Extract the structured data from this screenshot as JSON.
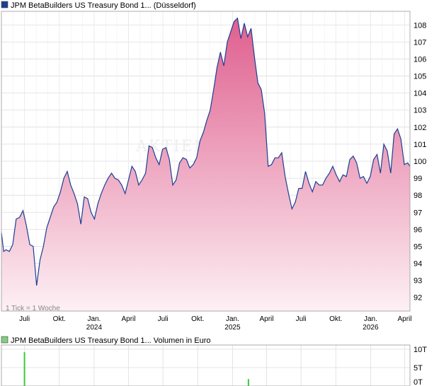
{
  "colors": {
    "price_line": "#1c3f94",
    "fill_top": "#df5f8e",
    "fill_bottom": "#fdf0f4",
    "legend_price": "#1c3f94",
    "legend_volume": "#7fcf7f",
    "volume_bar": "#3cc83c",
    "grid": "#dddddd"
  },
  "chart_data": [
    {
      "type": "area",
      "title": "JPM BetaBuilders US Treasury Bond 1... (Düsseldorf)",
      "legend_position": "top-left",
      "grid": true,
      "note": "1 Tick = 1 Woche",
      "watermark": "AKTIEN",
      "y_ticks": [
        "92",
        "93",
        "94",
        "95",
        "96",
        "97",
        "98",
        "99",
        "100",
        "101",
        "102",
        "103",
        "104",
        "105",
        "106",
        "107",
        "108"
      ],
      "ylim": [
        91.2,
        108.8
      ],
      "x_ticks": [
        {
          "date": "2023-07-01",
          "label": "Juli",
          "year": ""
        },
        {
          "date": "2023-10-01",
          "label": "Okt.",
          "year": ""
        },
        {
          "date": "2024-01-01",
          "label": "Jan.",
          "year": "2024"
        },
        {
          "date": "2024-04-01",
          "label": "April",
          "year": ""
        },
        {
          "date": "2024-07-01",
          "label": "Juli",
          "year": ""
        },
        {
          "date": "2024-10-01",
          "label": "Okt.",
          "year": ""
        },
        {
          "date": "2025-01-01",
          "label": "Jan.",
          "year": "2025"
        },
        {
          "date": "2025-04-01",
          "label": "April",
          "year": ""
        },
        {
          "date": "2025-07-01",
          "label": "Juli",
          "year": ""
        },
        {
          "date": "2025-10-01",
          "label": "Okt.",
          "year": ""
        },
        {
          "date": "2026-01-01",
          "label": "Jan.",
          "year": "2026"
        },
        {
          "date": "2026-04-01",
          "label": "April",
          "year": ""
        }
      ],
      "xlim": [
        "2023-05-01",
        "2026-04-15"
      ],
      "series": [
        {
          "x": [
            "2023-05-01",
            "2023-05-07",
            "2023-05-13",
            "2023-05-22",
            "2023-05-31",
            "2023-06-09",
            "2023-06-18",
            "2023-06-27",
            "2023-07-06",
            "2023-07-15",
            "2023-07-24",
            "2023-08-02",
            "2023-08-11",
            "2023-08-20",
            "2023-08-29",
            "2023-09-07",
            "2023-09-16",
            "2023-09-25",
            "2023-10-04",
            "2023-10-13",
            "2023-10-22",
            "2023-10-31",
            "2023-11-09",
            "2023-11-18",
            "2023-11-27",
            "2023-12-06",
            "2023-12-15",
            "2023-12-24",
            "2024-01-02",
            "2024-01-11",
            "2024-01-20",
            "2024-01-29",
            "2024-02-07",
            "2024-02-16",
            "2024-02-25",
            "2024-03-05",
            "2024-03-14",
            "2024-03-23",
            "2024-04-01",
            "2024-04-10",
            "2024-04-19",
            "2024-04-28",
            "2024-05-07",
            "2024-05-16",
            "2024-05-25",
            "2024-06-03",
            "2024-06-12",
            "2024-06-21",
            "2024-06-30",
            "2024-07-09",
            "2024-07-18",
            "2024-07-27",
            "2024-08-05",
            "2024-08-14",
            "2024-08-23",
            "2024-09-01",
            "2024-09-10",
            "2024-09-19",
            "2024-09-28",
            "2024-10-07",
            "2024-10-16",
            "2024-10-25",
            "2024-11-03",
            "2024-11-12",
            "2024-11-21",
            "2024-11-30",
            "2024-12-09",
            "2024-12-18",
            "2024-12-27",
            "2025-01-05",
            "2025-01-14",
            "2025-01-23",
            "2025-02-01",
            "2025-02-10",
            "2025-02-19",
            "2025-02-28",
            "2025-03-09",
            "2025-03-18",
            "2025-03-27",
            "2025-04-05",
            "2025-04-14",
            "2025-04-23",
            "2025-05-02",
            "2025-05-11",
            "2025-05-20",
            "2025-05-29",
            "2025-06-07",
            "2025-06-16",
            "2025-06-25",
            "2025-07-04",
            "2025-07-13",
            "2025-07-22",
            "2025-07-31",
            "2025-08-09",
            "2025-08-18",
            "2025-08-27",
            "2025-09-05",
            "2025-09-14",
            "2025-09-23",
            "2025-10-02",
            "2025-10-11",
            "2025-10-20",
            "2025-10-29",
            "2025-11-07",
            "2025-11-16",
            "2025-11-25",
            "2025-12-04",
            "2025-12-13",
            "2025-12-22",
            "2025-12-31",
            "2026-01-09",
            "2026-01-18",
            "2026-01-27",
            "2026-02-05",
            "2026-02-14",
            "2026-02-23",
            "2026-03-04",
            "2026-03-13",
            "2026-03-22",
            "2026-03-31",
            "2026-04-09",
            "2026-04-15"
          ],
          "y": [
            95.8,
            94.7,
            94.8,
            94.7,
            95.1,
            96.6,
            96.7,
            97.1,
            96.2,
            95.1,
            95.0,
            92.7,
            94.2,
            95.0,
            96.1,
            96.7,
            97.3,
            97.6,
            98.2,
            99.0,
            99.4,
            98.6,
            98.1,
            97.5,
            96.3,
            97.9,
            97.8,
            97.0,
            96.6,
            97.5,
            98.1,
            98.6,
            99.0,
            99.3,
            99.0,
            98.9,
            98.6,
            98.1,
            98.9,
            99.7,
            99.4,
            98.6,
            98.9,
            99.3,
            100.9,
            100.8,
            100.2,
            99.8,
            100.7,
            100.8,
            100.1,
            98.6,
            98.9,
            99.9,
            100.2,
            100.1,
            99.6,
            99.8,
            100.2,
            101.2,
            101.7,
            102.4,
            103.0,
            104.2,
            105.5,
            106.4,
            105.6,
            107.0,
            107.6,
            108.2,
            108.4,
            107.2,
            108.1,
            107.3,
            107.8,
            106.1,
            104.6,
            104.2,
            102.8,
            99.7,
            99.8,
            100.2,
            100.2,
            100.5,
            99.1,
            98.1,
            97.2,
            97.6,
            98.4,
            98.4,
            99.4,
            98.7,
            98.2,
            98.8,
            98.6,
            98.6,
            99.0,
            99.3,
            99.7,
            99.2,
            98.8,
            99.2,
            99.1,
            100.1,
            100.3,
            99.9,
            99.0,
            99.1,
            98.7,
            99.1,
            100.1,
            100.4,
            99.3,
            101.0,
            100.6,
            99.3,
            101.6,
            101.9,
            101.3,
            99.8,
            99.9,
            99.7
          ]
        }
      ]
    },
    {
      "type": "bar",
      "title": "JPM BetaBuilders US Treasury Bond 1... Volumen in Euro",
      "legend_position": "top-left",
      "grid": true,
      "y_ticks": [
        "10T",
        "5T",
        "0T"
      ],
      "ylim": [
        0,
        10000
      ],
      "x": [
        "2023-07-01",
        "2025-02-12"
      ],
      "values": [
        9200,
        1900
      ]
    }
  ]
}
